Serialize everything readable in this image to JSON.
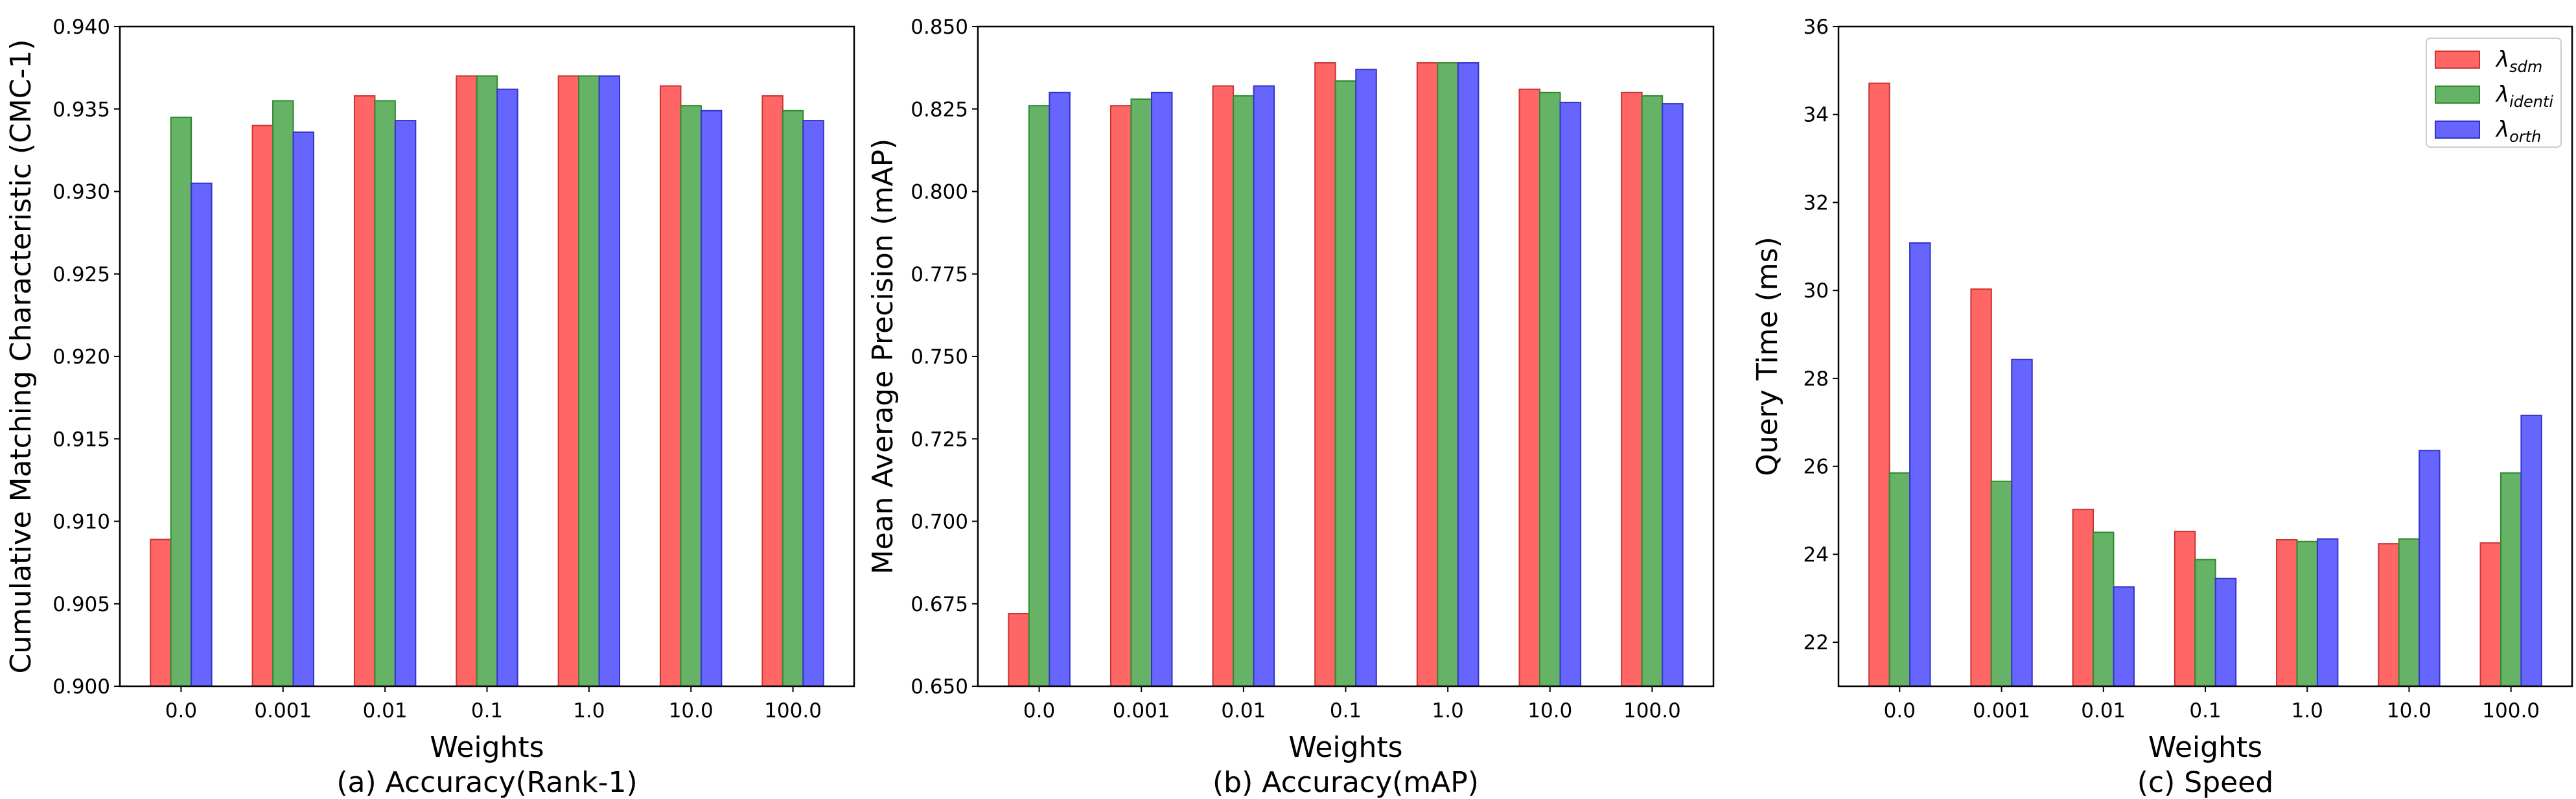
{
  "series_colors": {
    "sdm": "#ff6666",
    "identi": "#66b266",
    "orth": "#6666ff"
  },
  "series_edges": {
    "sdm": "#cc3333",
    "identi": "#2e8b2e",
    "orth": "#3333cc"
  },
  "legend": {
    "placement": "top-right",
    "items": [
      {
        "key": "sdm",
        "symbol": "λ",
        "sub": "sdm"
      },
      {
        "key": "identi",
        "symbol": "λ",
        "sub": "identi"
      },
      {
        "key": "orth",
        "symbol": "λ",
        "sub": "orth"
      }
    ]
  },
  "chart_data": [
    {
      "type": "bar",
      "caption": "(a) Accuracy(Rank-1)",
      "xlabel": "Weights",
      "ylabel": "Cumulative Matching Characteristic (CMC-1)",
      "categories": [
        "0.0",
        "0.001",
        "0.01",
        "0.1",
        "1.0",
        "10.0",
        "100.0"
      ],
      "ylim": [
        0.9,
        0.94
      ],
      "yticks": [
        "0.900",
        "0.905",
        "0.910",
        "0.915",
        "0.920",
        "0.925",
        "0.930",
        "0.935",
        "0.940"
      ],
      "grid": false,
      "series": [
        {
          "key": "sdm",
          "values": [
            0.9089,
            0.934,
            0.9358,
            0.937,
            0.937,
            0.9364,
            0.9358
          ]
        },
        {
          "key": "identi",
          "values": [
            0.9345,
            0.9355,
            0.9355,
            0.937,
            0.937,
            0.9352,
            0.9349
          ]
        },
        {
          "key": "orth",
          "values": [
            0.9305,
            0.9336,
            0.9343,
            0.9362,
            0.937,
            0.9349,
            0.9343
          ]
        }
      ]
    },
    {
      "type": "bar",
      "caption": "(b) Accuracy(mAP)",
      "xlabel": "Weights",
      "ylabel": "Mean Average Precision (mAP)",
      "categories": [
        "0.0",
        "0.001",
        "0.01",
        "0.1",
        "1.0",
        "10.0",
        "100.0"
      ],
      "ylim": [
        0.65,
        0.85
      ],
      "yticks": [
        "0.650",
        "0.675",
        "0.700",
        "0.725",
        "0.750",
        "0.775",
        "0.800",
        "0.825",
        "0.850"
      ],
      "grid": false,
      "series": [
        {
          "key": "sdm",
          "values": [
            0.672,
            0.826,
            0.832,
            0.839,
            0.839,
            0.831,
            0.83
          ]
        },
        {
          "key": "identi",
          "values": [
            0.826,
            0.828,
            0.829,
            0.8335,
            0.839,
            0.83,
            0.829
          ]
        },
        {
          "key": "orth",
          "values": [
            0.83,
            0.83,
            0.832,
            0.837,
            0.839,
            0.827,
            0.8266
          ]
        }
      ]
    },
    {
      "type": "bar",
      "caption": "(c) Speed",
      "xlabel": "Weights",
      "ylabel": "Query Time (ms)",
      "categories": [
        "0.0",
        "0.001",
        "0.01",
        "0.1",
        "1.0",
        "10.0",
        "100.0"
      ],
      "ylim": [
        21,
        36
      ],
      "yticks": [
        "22",
        "24",
        "26",
        "28",
        "30",
        "32",
        "34",
        "36"
      ],
      "grid": false,
      "legend": true,
      "series": [
        {
          "key": "sdm",
          "values": [
            34.71,
            30.03,
            25.02,
            24.52,
            24.33,
            24.24,
            24.26
          ]
        },
        {
          "key": "identi",
          "values": [
            25.85,
            25.66,
            24.5,
            23.88,
            24.29,
            24.35,
            25.85
          ]
        },
        {
          "key": "orth",
          "values": [
            31.08,
            28.43,
            23.26,
            23.45,
            24.35,
            26.36,
            27.16
          ]
        }
      ]
    }
  ]
}
